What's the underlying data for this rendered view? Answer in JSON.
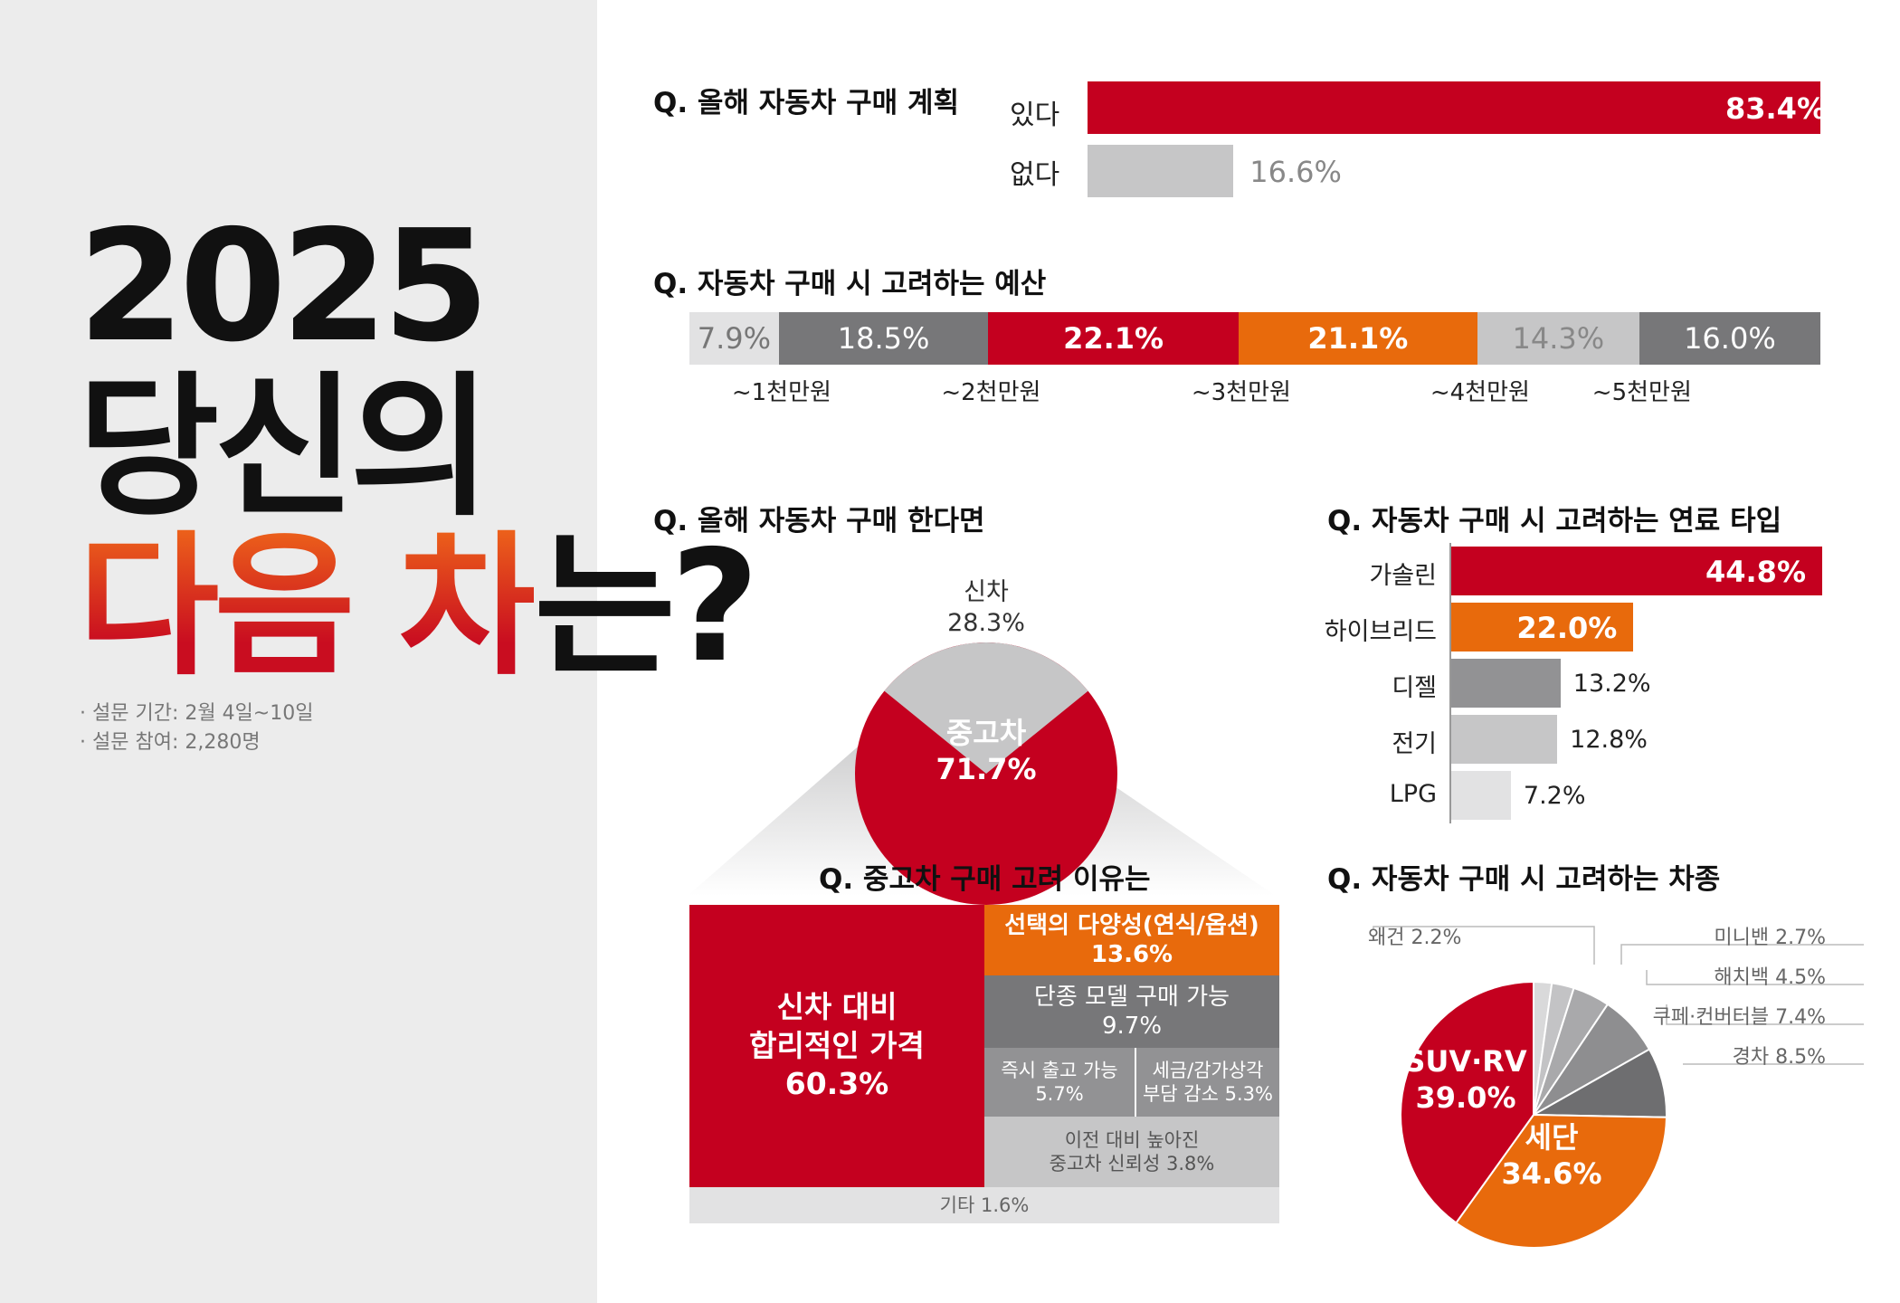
{
  "colors": {
    "red": "#c4001f",
    "orange": "#e86a0c",
    "dark": "#777779",
    "mid": "#929294",
    "light": "#c6c6c7",
    "pale": "#e2e2e3"
  },
  "headline": {
    "year": "2025",
    "line2": "당신의",
    "line3_a": "다음 차",
    "line3_b": "는?"
  },
  "survey": {
    "period": "· 설문 기간: 2월 4일~10일",
    "participants": "· 설문 참여: 2,280명"
  },
  "chart_data": [
    {
      "id": "plan",
      "type": "bar",
      "title": "Q. 올해 자동차 구매 계획",
      "categories": [
        "있다",
        "없다"
      ],
      "values": [
        83.4,
        16.6
      ],
      "labels": [
        "83.4%",
        "16.6%"
      ],
      "unit": "%"
    },
    {
      "id": "budget",
      "type": "bar",
      "orientation": "stacked-horizontal",
      "title": "Q. 자동차 구매 시 고려하는 예산",
      "values": [
        7.9,
        18.5,
        22.1,
        21.1,
        14.3,
        16.0
      ],
      "labels": [
        "7.9%",
        "18.5%",
        "22.1%",
        "21.1%",
        "14.3%",
        "16.0%"
      ],
      "boundary_labels": [
        "~1천만원",
        "~2천만원",
        "~3천만원",
        "~4천만원",
        "~5천만원"
      ],
      "unit": "%"
    },
    {
      "id": "newused",
      "type": "pie",
      "title": "Q. 올해 자동차 구매 한다면",
      "slices": [
        {
          "name": "신차",
          "value": 28.3,
          "label": "28.3%"
        },
        {
          "name": "중고차",
          "value": 71.7,
          "label": "71.7%"
        }
      ],
      "unit": "%"
    },
    {
      "id": "reasons",
      "type": "treemap",
      "title": "Q. 중고차 구매 고려 이유는",
      "items": [
        {
          "name": "신차 대비\n합리적인 가격",
          "value": 60.3,
          "label": "60.3%"
        },
        {
          "name": "선택의 다양성(연식/옵션)",
          "value": 13.6,
          "label": "13.6%"
        },
        {
          "name": "단종 모델 구매 가능",
          "value": 9.7,
          "label": "9.7%"
        },
        {
          "name": "즉시 출고 가능",
          "value": 5.7,
          "label": "5.7%"
        },
        {
          "name": "세금/감가상각\n부담 감소",
          "value": 5.3,
          "label": "5.3%"
        },
        {
          "name": "이전 대비 높아진\n중고차 신뢰성",
          "value": 3.8,
          "label": "3.8%"
        },
        {
          "name": "기타",
          "value": 1.6,
          "label": "1.6%"
        }
      ]
    },
    {
      "id": "fuel",
      "type": "bar",
      "title": "Q. 자동차 구매 시 고려하는 연료 타입",
      "categories": [
        "가솔린",
        "하이브리드",
        "디젤",
        "전기",
        "LPG"
      ],
      "values": [
        44.8,
        22.0,
        13.2,
        12.8,
        7.2
      ],
      "labels": [
        "44.8%",
        "22.0%",
        "13.2%",
        "12.8%",
        "7.2%"
      ],
      "unit": "%"
    },
    {
      "id": "body",
      "type": "pie",
      "title": "Q. 자동차 구매 시 고려하는 차종",
      "slices": [
        {
          "name": "SUV·RV",
          "value": 39.0,
          "label": "39.0%"
        },
        {
          "name": "세단",
          "value": 34.6,
          "label": "34.6%"
        },
        {
          "name": "경차",
          "value": 8.5,
          "label": "8.5%"
        },
        {
          "name": "쿠페·컨버터블",
          "value": 7.4,
          "label": "7.4%"
        },
        {
          "name": "해치백",
          "value": 4.5,
          "label": "4.5%"
        },
        {
          "name": "미니밴",
          "value": 2.7,
          "label": "2.7%"
        },
        {
          "name": "왜건",
          "value": 2.2,
          "label": "2.2%"
        }
      ],
      "unit": "%"
    }
  ]
}
